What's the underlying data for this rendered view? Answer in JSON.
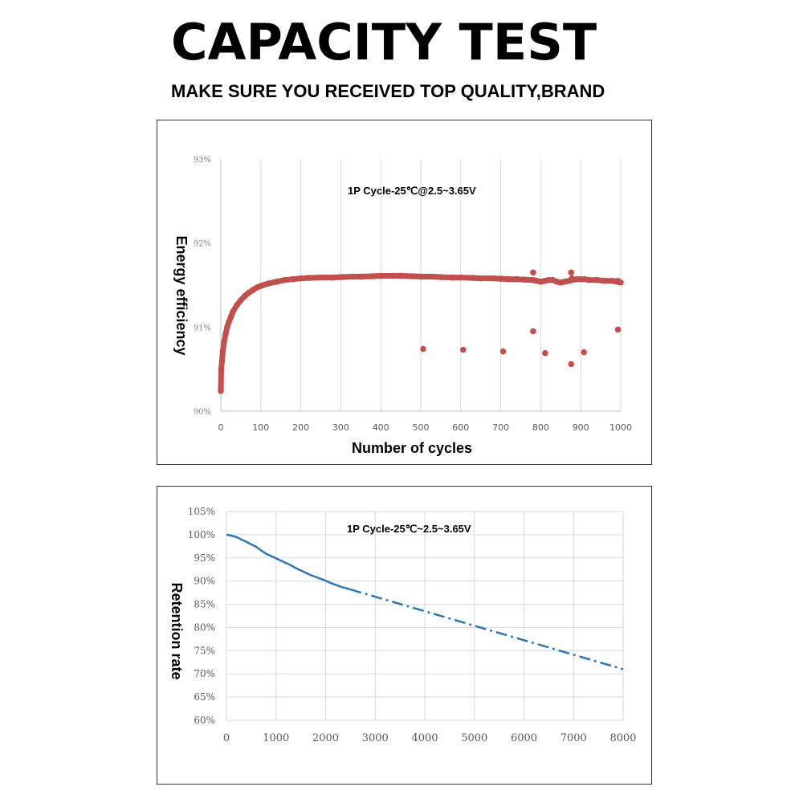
{
  "header": {
    "title": "CAPACITY TEST",
    "subtitle": "MAKE SURE YOU RECEIVED TOP QUALITY,BRAND"
  },
  "chart_data": [
    {
      "type": "scatter",
      "annotation": "1P Cycle-25℃@2.5~3.65V",
      "xlabel": "Number of cycles",
      "ylabel": "Energy efficiency",
      "xlim": [
        0,
        1000
      ],
      "ylim": [
        90,
        93
      ],
      "x_ticks": [
        "0",
        "100",
        "200",
        "300",
        "400",
        "500",
        "600",
        "700",
        "800",
        "900",
        "1000"
      ],
      "y_ticks": [
        "90%",
        "91%",
        "92%",
        "93%"
      ],
      "grid": "vertical",
      "color": "#c0504d",
      "series": [
        {
          "x": [
            0,
            1,
            3,
            5,
            8,
            12,
            16,
            20,
            25,
            30,
            40,
            50,
            60,
            70,
            80,
            90,
            100,
            120,
            140,
            160,
            180,
            200,
            220,
            250,
            280,
            300,
            330,
            350,
            380,
            400,
            430,
            450,
            480,
            500,
            530,
            550,
            580,
            600,
            630,
            650,
            680,
            700,
            720,
            740,
            760,
            780,
            790,
            800,
            810,
            820,
            830,
            840,
            850,
            860,
            870,
            880,
            890,
            900,
            910,
            920,
            940,
            960,
            980,
            990,
            1000
          ],
          "y": [
            90.24,
            90.5,
            90.6,
            90.72,
            90.82,
            90.92,
            91.0,
            91.06,
            91.12,
            91.18,
            91.26,
            91.32,
            91.37,
            91.41,
            91.44,
            91.47,
            91.49,
            91.52,
            91.54,
            91.56,
            91.57,
            91.58,
            91.585,
            91.59,
            91.59,
            91.595,
            91.6,
            91.6,
            91.605,
            91.61,
            91.61,
            91.61,
            91.605,
            91.6,
            91.6,
            91.595,
            91.59,
            91.59,
            91.585,
            91.58,
            91.58,
            91.575,
            91.57,
            91.57,
            91.565,
            91.56,
            91.55,
            91.54,
            91.55,
            91.56,
            91.56,
            91.54,
            91.53,
            91.54,
            91.55,
            91.56,
            91.57,
            91.57,
            91.57,
            91.56,
            91.56,
            91.55,
            91.55,
            91.54,
            91.53
          ]
        },
        {
          "x": [
            506,
            606,
            706,
            781,
            781,
            811,
            876,
            876,
            878,
            908,
            993,
            993
          ],
          "y": [
            90.74,
            90.73,
            90.71,
            90.95,
            91.65,
            90.69,
            90.56,
            91.65,
            91.58,
            90.7,
            90.97,
            91.55
          ]
        }
      ]
    },
    {
      "type": "line",
      "annotation": "1P Cycle-25℃~2.5~3.65V",
      "xlabel": "",
      "ylabel": "Retention rate",
      "xlim": [
        0,
        8000
      ],
      "ylim": [
        60,
        105
      ],
      "x_ticks": [
        "0",
        "1000",
        "2000",
        "3000",
        "4000",
        "5000",
        "6000",
        "7000",
        "8000"
      ],
      "y_ticks": [
        "60%",
        "65%",
        "70%",
        "75%",
        "80%",
        "85%",
        "90%",
        "95%",
        "100%",
        "105%"
      ],
      "grid": "both",
      "color": "#2e75b6",
      "series": [
        {
          "style": "solid",
          "x": [
            0,
            100,
            200,
            300,
            400,
            500,
            600,
            700,
            800,
            900,
            1000,
            1100,
            1200,
            1300,
            1400,
            1500,
            1600,
            1700,
            1800,
            1900,
            2000,
            2100,
            2200,
            2300,
            2400,
            2500
          ],
          "y": [
            100.0,
            99.8,
            99.5,
            99.0,
            98.5,
            97.9,
            97.4,
            96.6,
            95.9,
            95.4,
            94.9,
            94.4,
            93.9,
            93.4,
            92.8,
            92.3,
            91.8,
            91.3,
            90.9,
            90.5,
            90.1,
            89.6,
            89.2,
            88.8,
            88.5,
            88.2
          ]
        },
        {
          "style": "dash-dot",
          "x": [
            2500,
            8000
          ],
          "y": [
            88.2,
            71.0
          ]
        }
      ]
    }
  ]
}
